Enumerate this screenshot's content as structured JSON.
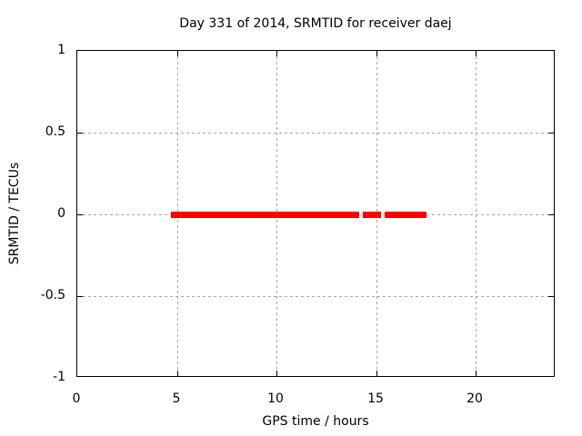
{
  "chart_data": {
    "type": "scatter",
    "title": "Day 331 of 2014, SRMTID for receiver daej",
    "xlabel": "GPS time / hours",
    "ylabel": "SRMTID / TECUs",
    "xlim": [
      0,
      24
    ],
    "ylim": [
      -1,
      1
    ],
    "x_ticks": [
      {
        "value": 0,
        "label": "0"
      },
      {
        "value": 5,
        "label": "5"
      },
      {
        "value": 10,
        "label": "10"
      },
      {
        "value": 15,
        "label": "15"
      },
      {
        "value": 20,
        "label": "20"
      }
    ],
    "y_ticks": [
      {
        "value": -1,
        "label": "-1"
      },
      {
        "value": -0.5,
        "label": "-0.5"
      },
      {
        "value": 0,
        "label": "0"
      },
      {
        "value": 0.5,
        "label": "0.5"
      },
      {
        "value": 1,
        "label": "1"
      }
    ],
    "grid": true,
    "legend": "none",
    "series": [
      {
        "name": "SRMTID",
        "marker": "filled-square",
        "color": "#ff0000",
        "y_value": 0,
        "x_segments_hours": [
          [
            4.72,
            14.14
          ],
          [
            14.33,
            15.24
          ],
          [
            15.42,
            17.52
          ]
        ]
      }
    ],
    "colors": {
      "background": "#ffffff",
      "border": "#000000",
      "grid": "#a8a8a8",
      "text": "#000000"
    }
  }
}
